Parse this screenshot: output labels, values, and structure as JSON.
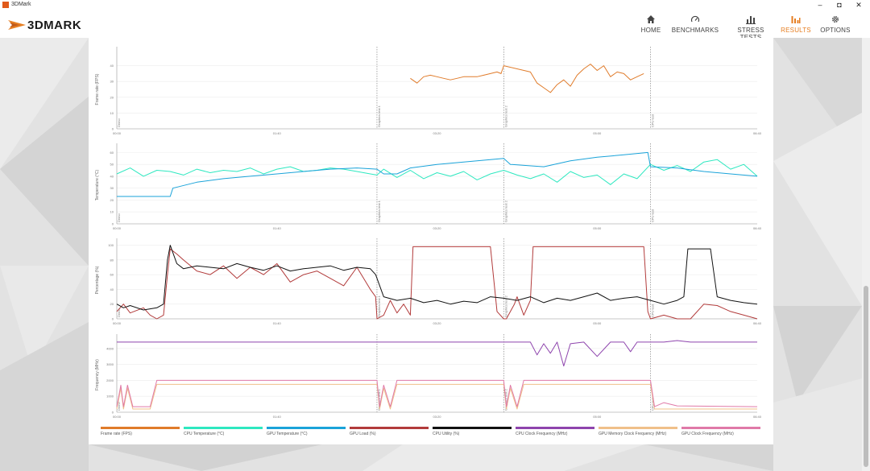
{
  "window": {
    "title": "3DMark",
    "minimize": "–",
    "maximize": "◘",
    "close": "✕"
  },
  "header": {
    "logo_text": "3DMARK",
    "nav": [
      {
        "label": "HOME",
        "icon": "home-icon"
      },
      {
        "label": "BENCHMARKS",
        "icon": "gauge-icon"
      },
      {
        "label": "STRESS TESTS",
        "icon": "stress-bars-icon"
      },
      {
        "label": "RESULTS",
        "icon": "results-bars-icon",
        "active": true
      },
      {
        "label": "OPTIONS",
        "icon": "gear-icon"
      }
    ]
  },
  "colors": {
    "accent": "#e67e22",
    "frame_rate": "#e07b2a",
    "cpu_temp": "#2ee8c0",
    "gpu_temp": "#1aa3d9",
    "gpu_load": "#b23b3b",
    "cpu_util": "#111111",
    "cpu_clock": "#8e44ad",
    "gpu_mem_clock": "#f0c08a",
    "gpu_clock": "#e07aa8"
  },
  "timeline": {
    "x_ticks": [
      "00:00",
      "01:40",
      "03:20",
      "05:00",
      "06:40"
    ],
    "sections": [
      "Demo",
      "Graphics test 1",
      "Graphics test 2",
      "CPU test"
    ],
    "section_bounds_sec": [
      0,
      195,
      290,
      400,
      480
    ]
  },
  "chart_data": [
    {
      "type": "line",
      "title": "Frame rate",
      "ylabel": "Frame rate (FPS)",
      "ylim": [
        0,
        50
      ],
      "y_ticks": [
        "0",
        "10",
        "20",
        "30",
        "40"
      ],
      "series": [
        {
          "name": "Frame rate (FPS)",
          "color": "#e07b2a",
          "x": [
            220,
            225,
            230,
            235,
            240,
            245,
            250,
            255,
            260,
            265,
            270,
            275,
            280,
            285,
            288,
            290,
            310,
            315,
            320,
            325,
            330,
            335,
            340,
            345,
            350,
            355,
            360,
            365,
            370,
            375,
            380,
            385,
            390,
            395
          ],
          "values": [
            32,
            29,
            33,
            34,
            33,
            32,
            31,
            32,
            33,
            33,
            33,
            34,
            35,
            36,
            35,
            40,
            36,
            29,
            26,
            23,
            28,
            31,
            27,
            34,
            38,
            41,
            37,
            40,
            33,
            36,
            35,
            31,
            33,
            35
          ]
        }
      ]
    },
    {
      "type": "line",
      "title": "Temperature",
      "ylabel": "Temperature (°C)",
      "ylim": [
        0,
        65
      ],
      "y_ticks": [
        "0",
        "10",
        "20",
        "30",
        "40",
        "50",
        "60"
      ],
      "series": [
        {
          "name": "CPU Temperature (°C)",
          "color": "#2ee8c0",
          "x": [
            0,
            10,
            20,
            30,
            40,
            50,
            60,
            70,
            80,
            90,
            100,
            110,
            120,
            130,
            140,
            150,
            160,
            170,
            180,
            190,
            195,
            200,
            210,
            220,
            230,
            240,
            250,
            260,
            270,
            280,
            290,
            300,
            310,
            320,
            330,
            340,
            350,
            360,
            370,
            380,
            390,
            400,
            410,
            420,
            430,
            440,
            450,
            460,
            470,
            480
          ],
          "values": [
            42,
            47,
            40,
            45,
            44,
            41,
            46,
            43,
            45,
            44,
            47,
            42,
            46,
            48,
            44,
            45,
            47,
            46,
            44,
            42,
            41,
            46,
            39,
            45,
            38,
            43,
            40,
            44,
            37,
            42,
            45,
            41,
            38,
            42,
            35,
            44,
            39,
            41,
            33,
            42,
            38,
            50,
            45,
            49,
            44,
            52,
            54,
            46,
            50,
            40
          ]
        },
        {
          "name": "GPU Temperature (°C)",
          "color": "#1aa3d9",
          "x": [
            0,
            40,
            42,
            60,
            80,
            100,
            120,
            140,
            160,
            180,
            195,
            200,
            210,
            220,
            240,
            260,
            280,
            290,
            295,
            320,
            340,
            360,
            380,
            398,
            400,
            420,
            440,
            460,
            480
          ],
          "values": [
            23,
            23,
            30,
            35,
            38,
            40,
            42,
            44,
            46,
            47,
            46,
            42,
            42,
            47,
            50,
            52,
            54,
            55,
            50,
            48,
            53,
            56,
            58,
            60,
            48,
            47,
            44,
            42,
            40
          ]
        }
      ]
    },
    {
      "type": "line",
      "title": "Percentage",
      "ylabel": "Percentage (%)",
      "ylim": [
        0,
        105
      ],
      "y_ticks": [
        "0",
        "20",
        "40",
        "60",
        "80",
        "100"
      ],
      "series": [
        {
          "name": "GPU Load (%)",
          "color": "#b23b3b",
          "x": [
            0,
            5,
            10,
            20,
            25,
            30,
            35,
            38,
            40,
            45,
            50,
            60,
            70,
            80,
            90,
            100,
            110,
            120,
            130,
            140,
            150,
            160,
            170,
            180,
            190,
            194,
            195,
            200,
            205,
            210,
            215,
            220,
            222,
            280,
            285,
            290,
            292,
            298,
            300,
            305,
            310,
            312,
            395,
            398,
            400,
            410,
            420,
            430,
            440,
            450,
            460,
            470,
            480
          ],
          "values": [
            10,
            20,
            8,
            15,
            5,
            0,
            5,
            60,
            95,
            88,
            80,
            65,
            60,
            72,
            55,
            70,
            60,
            75,
            50,
            60,
            65,
            55,
            45,
            70,
            40,
            30,
            0,
            5,
            25,
            8,
            20,
            5,
            98,
            98,
            10,
            0,
            0,
            20,
            30,
            5,
            25,
            98,
            98,
            10,
            0,
            5,
            0,
            0,
            20,
            18,
            10,
            5,
            0
          ]
        },
        {
          "name": "CPU Utility (%)",
          "color": "#111111",
          "x": [
            0,
            5,
            10,
            20,
            30,
            35,
            38,
            40,
            45,
            50,
            60,
            70,
            80,
            90,
            100,
            110,
            120,
            130,
            140,
            150,
            160,
            170,
            180,
            190,
            194,
            200,
            210,
            220,
            230,
            240,
            250,
            260,
            270,
            280,
            290,
            300,
            310,
            320,
            330,
            340,
            350,
            360,
            370,
            380,
            390,
            400,
            410,
            420,
            425,
            428,
            440,
            445,
            450,
            460,
            470,
            480
          ],
          "values": [
            20,
            15,
            18,
            12,
            15,
            20,
            80,
            100,
            75,
            68,
            72,
            70,
            68,
            75,
            70,
            66,
            72,
            65,
            68,
            70,
            72,
            66,
            70,
            68,
            60,
            30,
            25,
            28,
            22,
            25,
            20,
            24,
            22,
            30,
            28,
            25,
            30,
            22,
            28,
            25,
            30,
            35,
            25,
            28,
            30,
            25,
            20,
            25,
            30,
            95,
            95,
            95,
            30,
            25,
            22,
            20
          ]
        }
      ]
    },
    {
      "type": "line",
      "title": "Frequency",
      "ylabel": "Frequency (MHz)",
      "ylim": [
        0,
        4700
      ],
      "y_ticks": [
        "0",
        "1000",
        "2000",
        "3000",
        "4000"
      ],
      "series": [
        {
          "name": "CPU Clock Frequency (MHz)",
          "color": "#8e44ad",
          "x": [
            0,
            290,
            310,
            315,
            320,
            325,
            330,
            335,
            340,
            350,
            360,
            370,
            380,
            385,
            390,
            395,
            400,
            410,
            420,
            430,
            440,
            480
          ],
          "values": [
            4400,
            4400,
            4400,
            3600,
            4300,
            3700,
            4400,
            2900,
            4300,
            4400,
            3500,
            4400,
            4400,
            3800,
            4400,
            4400,
            4400,
            4400,
            4500,
            4400,
            4400,
            4400
          ]
        },
        {
          "name": "GPU Memory Clock Frequency (MHz)",
          "color": "#f0c08a",
          "x": [
            0,
            3,
            5,
            8,
            12,
            15,
            25,
            30,
            195,
            197,
            200,
            205,
            210,
            290,
            292,
            295,
            300,
            305,
            400,
            403,
            410,
            420,
            480
          ],
          "values": [
            200,
            1500,
            200,
            1500,
            200,
            200,
            200,
            1750,
            1750,
            200,
            1500,
            200,
            1750,
            1750,
            200,
            1500,
            200,
            1750,
            1750,
            200,
            200,
            200,
            200
          ]
        },
        {
          "name": "GPU Clock Frequency (MHz)",
          "color": "#e07aa8",
          "x": [
            0,
            3,
            5,
            8,
            12,
            15,
            25,
            30,
            150,
            195,
            197,
            200,
            205,
            210,
            290,
            292,
            295,
            300,
            305,
            400,
            403,
            410,
            420,
            480
          ],
          "values": [
            350,
            1700,
            350,
            1700,
            350,
            350,
            350,
            2000,
            2000,
            2000,
            350,
            1700,
            350,
            2000,
            2000,
            350,
            1700,
            350,
            2000,
            2000,
            350,
            600,
            400,
            350
          ]
        }
      ]
    }
  ],
  "legend": [
    {
      "label": "Frame rate (FPS)",
      "color": "#e07b2a"
    },
    {
      "label": "CPU Temperature (°C)",
      "color": "#2ee8c0"
    },
    {
      "label": "GPU Temperature (°C)",
      "color": "#1aa3d9"
    },
    {
      "label": "GPU Load (%)",
      "color": "#b23b3b"
    },
    {
      "label": "CPU Utility (%)",
      "color": "#111111"
    },
    {
      "label": "CPU Clock Frequency (MHz)",
      "color": "#8e44ad"
    },
    {
      "label": "GPU Memory Clock Frequency (MHz)",
      "color": "#f0c08a"
    },
    {
      "label": "GPU Clock Frequency (MHz)",
      "color": "#e07aa8"
    }
  ]
}
